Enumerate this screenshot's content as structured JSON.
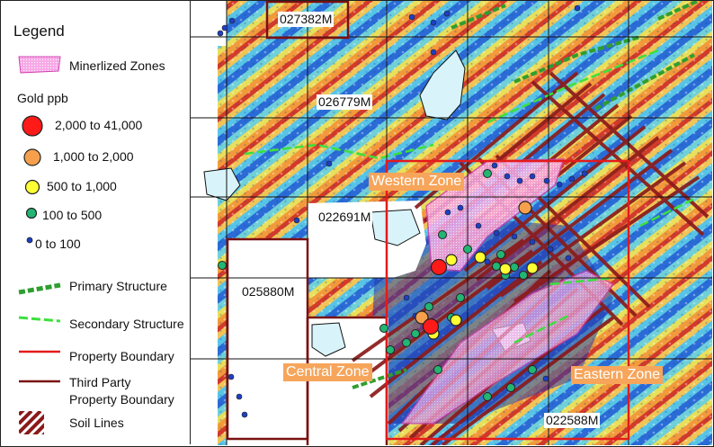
{
  "legend": {
    "title": "Legend",
    "mineralized_label": "Minerlized Zones",
    "gold_title": "Gold ppb",
    "gold_classes": [
      {
        "label": "2,000 to 41,000",
        "color": "#ff1a1a"
      },
      {
        "label": "1,000 to 2,000",
        "color": "#f6a04d"
      },
      {
        "label": "500 to 1,000",
        "color": "#ffff33"
      },
      {
        "label": "100 to 500",
        "color": "#22b573"
      },
      {
        "label": "0 to 100",
        "color": "#1d3fc4"
      }
    ],
    "primary_structure": "Primary Structure",
    "secondary_structure": "Secondary Structure",
    "property_boundary": "Property Boundary",
    "third_party_line1": "Third Party",
    "third_party_line2": "Property Boundary",
    "soil_lines": "Soil Lines"
  },
  "map": {
    "claims": [
      "027382M",
      "026779M",
      "022691M",
      "025880M",
      "022588M"
    ],
    "zones": [
      "Western Zone",
      "Central Zone",
      "Eastern Zone"
    ]
  },
  "colors": {
    "primary_structure": "#2f9e2f",
    "secondary_structure": "#3de03d",
    "property_boundary": "#e31b1b",
    "third_party_boundary": "#7a1010",
    "soil_lines": "#8b1a1a",
    "mineralized_fill": "#f7a8e6",
    "zone_label_bg": "#f6a55b"
  }
}
